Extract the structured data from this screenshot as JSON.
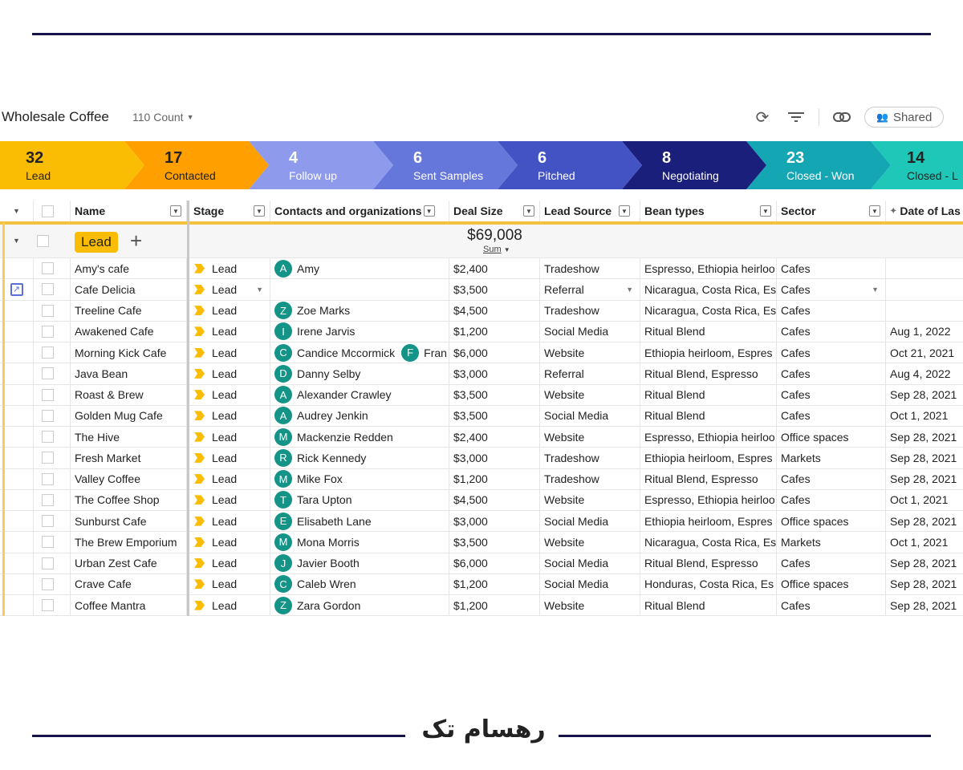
{
  "header": {
    "title": "Wholesale Coffee",
    "count": "110 Count",
    "shared_label": "Shared"
  },
  "pipeline": [
    {
      "count": "32",
      "label": "Lead",
      "color": "#fbbc04"
    },
    {
      "count": "17",
      "label": "Contacted",
      "color": "#ff9f00"
    },
    {
      "count": "4",
      "label": "Follow up",
      "color": "#8e9bec"
    },
    {
      "count": "6",
      "label": "Sent Samples",
      "color": "#6577db"
    },
    {
      "count": "6",
      "label": "Pitched",
      "color": "#4453c3"
    },
    {
      "count": "8",
      "label": "Negotiating",
      "color": "#1b1f7c"
    },
    {
      "count": "23",
      "label": "Closed - Won",
      "color": "#14a6b3"
    },
    {
      "count": "14",
      "label": "Closed - L",
      "color": "#1fc7b8"
    }
  ],
  "columns": [
    "Name",
    "Stage",
    "Contacts and organizations",
    "Deal Size",
    "Lead Source",
    "Bean types",
    "Sector",
    "Date of Las"
  ],
  "group": {
    "label": "Lead",
    "total": "$69,008",
    "agg": "Sum"
  },
  "rows": [
    {
      "name": "Amy's cafe",
      "stage": "Lead",
      "contacts": [
        {
          "i": "A",
          "n": "Amy"
        }
      ],
      "deal": "$2,400",
      "source": "Tradeshow",
      "beans": "Espresso, Ethiopia heirloo",
      "sector": "Cafes",
      "date": ""
    },
    {
      "name": "Cafe Delicia",
      "stage": "Lead",
      "contacts": [],
      "deal": "$3,500",
      "source": "Referral",
      "beans": "Nicaragua, Costa Rica, Es",
      "sector": "Cafes",
      "date": "",
      "selected": true
    },
    {
      "name": "Treeline Cafe",
      "stage": "Lead",
      "contacts": [
        {
          "i": "Z",
          "n": "Zoe Marks"
        }
      ],
      "deal": "$4,500",
      "source": "Tradeshow",
      "beans": "Nicaragua, Costa Rica, Es",
      "sector": "Cafes",
      "date": ""
    },
    {
      "name": "Awakened Cafe",
      "stage": "Lead",
      "contacts": [
        {
          "i": "I",
          "n": "Irene Jarvis"
        }
      ],
      "deal": "$1,200",
      "source": "Social Media",
      "beans": "Ritual Blend",
      "sector": "Cafes",
      "date": "Aug 1, 2022"
    },
    {
      "name": "Morning Kick Cafe",
      "stage": "Lead",
      "contacts": [
        {
          "i": "C",
          "n": "Candice Mccormick"
        },
        {
          "i": "F",
          "n": "Fran"
        }
      ],
      "deal": "$6,000",
      "source": "Website",
      "beans": "Ethiopia heirloom, Espres",
      "sector": "Cafes",
      "date": "Oct 21, 2021"
    },
    {
      "name": "Java Bean",
      "stage": "Lead",
      "contacts": [
        {
          "i": "D",
          "n": "Danny Selby"
        }
      ],
      "deal": "$3,000",
      "source": "Referral",
      "beans": "Ritual Blend, Espresso",
      "sector": "Cafes",
      "date": "Aug 4, 2022"
    },
    {
      "name": "Roast & Brew",
      "stage": "Lead",
      "contacts": [
        {
          "i": "A",
          "n": "Alexander Crawley"
        }
      ],
      "deal": "$3,500",
      "source": "Website",
      "beans": "Ritual Blend",
      "sector": "Cafes",
      "date": "Sep 28, 2021"
    },
    {
      "name": "Golden Mug Cafe",
      "stage": "Lead",
      "contacts": [
        {
          "i": "A",
          "n": "Audrey Jenkin"
        }
      ],
      "deal": "$3,500",
      "source": "Social Media",
      "beans": "Ritual Blend",
      "sector": "Cafes",
      "date": "Oct 1, 2021"
    },
    {
      "name": "The Hive",
      "stage": "Lead",
      "contacts": [
        {
          "i": "M",
          "n": "Mackenzie Redden"
        }
      ],
      "deal": "$2,400",
      "source": "Website",
      "beans": "Espresso, Ethiopia heirloo",
      "sector": "Office spaces",
      "date": "Sep 28, 2021"
    },
    {
      "name": "Fresh Market",
      "stage": "Lead",
      "contacts": [
        {
          "i": "R",
          "n": "Rick Kennedy"
        }
      ],
      "deal": "$3,000",
      "source": "Tradeshow",
      "beans": "Ethiopia heirloom, Espres",
      "sector": "Markets",
      "date": "Sep 28, 2021"
    },
    {
      "name": "Valley Coffee",
      "stage": "Lead",
      "contacts": [
        {
          "i": "M",
          "n": "Mike Fox"
        }
      ],
      "deal": "$1,200",
      "source": "Tradeshow",
      "beans": "Ritual Blend, Espresso",
      "sector": "Cafes",
      "date": "Sep 28, 2021"
    },
    {
      "name": "The Coffee Shop",
      "stage": "Lead",
      "contacts": [
        {
          "i": "T",
          "n": "Tara Upton"
        }
      ],
      "deal": "$4,500",
      "source": "Website",
      "beans": "Espresso, Ethiopia heirloo",
      "sector": "Cafes",
      "date": "Oct 1, 2021"
    },
    {
      "name": "Sunburst Cafe",
      "stage": "Lead",
      "contacts": [
        {
          "i": "E",
          "n": "Elisabeth Lane"
        }
      ],
      "deal": "$3,000",
      "source": "Social Media",
      "beans": "Ethiopia heirloom, Espres",
      "sector": "Office spaces",
      "date": "Sep 28, 2021"
    },
    {
      "name": "The Brew Emporium",
      "stage": "Lead",
      "contacts": [
        {
          "i": "M",
          "n": "Mona Morris"
        }
      ],
      "deal": "$3,500",
      "source": "Website",
      "beans": "Nicaragua, Costa Rica, Es",
      "sector": "Markets",
      "date": "Oct 1, 2021"
    },
    {
      "name": "Urban Zest Cafe",
      "stage": "Lead",
      "contacts": [
        {
          "i": "J",
          "n": "Javier Booth"
        }
      ],
      "deal": "$6,000",
      "source": "Social Media",
      "beans": "Ritual Blend, Espresso",
      "sector": "Cafes",
      "date": "Sep 28, 2021"
    },
    {
      "name": "Crave Cafe",
      "stage": "Lead",
      "contacts": [
        {
          "i": "C",
          "n": "Caleb Wren"
        }
      ],
      "deal": "$1,200",
      "source": "Social Media",
      "beans": "Honduras, Costa Rica, Es",
      "sector": "Office spaces",
      "date": "Sep 28, 2021"
    },
    {
      "name": "Coffee Mantra",
      "stage": "Lead",
      "contacts": [
        {
          "i": "Z",
          "n": "Zara Gordon"
        }
      ],
      "deal": "$1,200",
      "source": "Website",
      "beans": "Ritual Blend",
      "sector": "Cafes",
      "date": "Sep 28, 2021"
    }
  ],
  "footer": {
    "logo_text": "رهسام تک"
  }
}
